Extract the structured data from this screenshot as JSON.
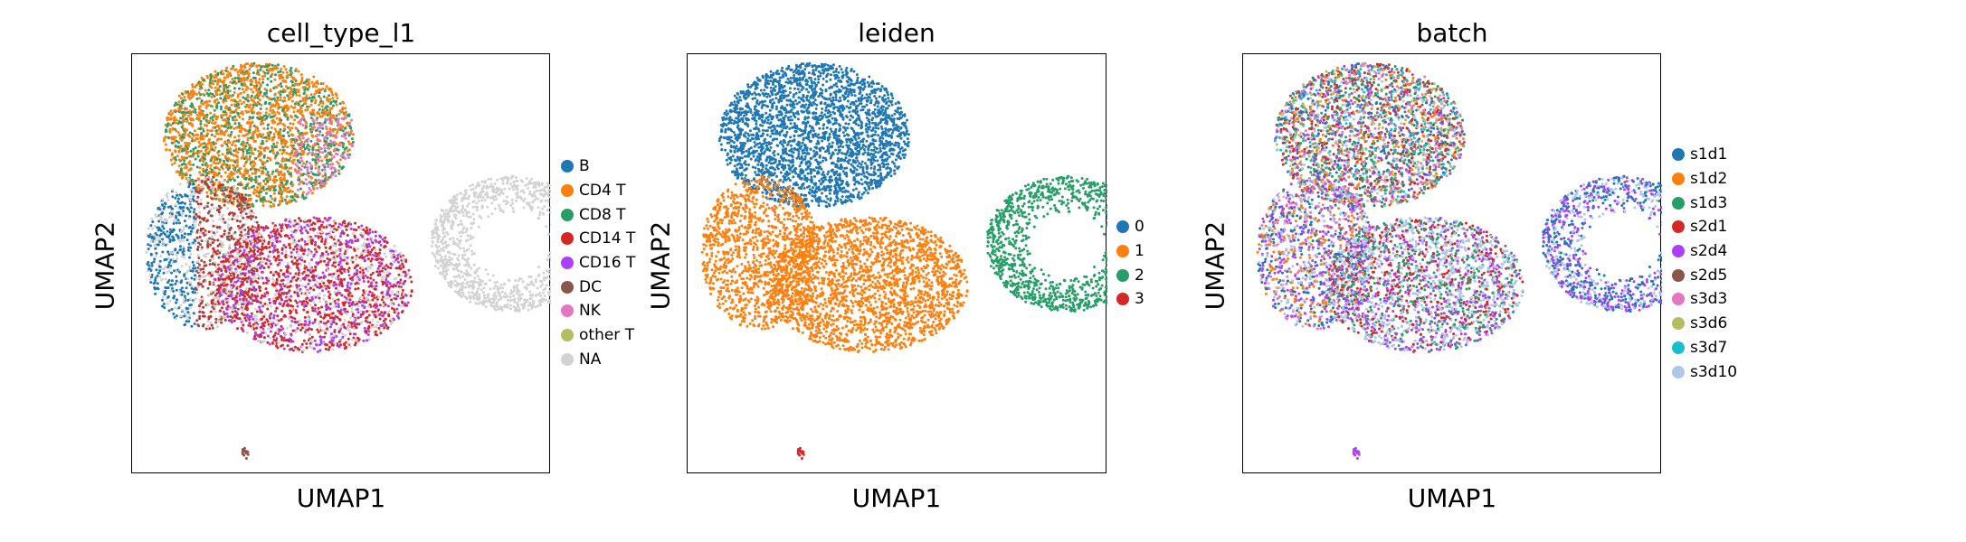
{
  "chart_data": [
    {
      "type": "scatter",
      "title": "cell_type_l1",
      "xlabel": "UMAP1",
      "ylabel": "UMAP2",
      "legend": [
        {
          "label": "B",
          "color": "#1f77b4"
        },
        {
          "label": "CD4 T",
          "color": "#ff7f0e"
        },
        {
          "label": "CD8 T",
          "color": "#279e68"
        },
        {
          "label": "CD14 T",
          "color": "#d62728"
        },
        {
          "label": "CD16 T",
          "color": "#aa40fc"
        },
        {
          "label": "DC",
          "color": "#8c564b"
        },
        {
          "label": "NK",
          "color": "#e377c2"
        },
        {
          "label": "other T",
          "color": "#b5bd61"
        },
        {
          "label": "NA",
          "color": "#d3d3d3"
        }
      ],
      "legend_placement": "right"
    },
    {
      "type": "scatter",
      "title": "leiden",
      "xlabel": "UMAP1",
      "ylabel": "UMAP2",
      "legend": [
        {
          "label": "0",
          "color": "#1f77b4"
        },
        {
          "label": "1",
          "color": "#ff7f0e"
        },
        {
          "label": "2",
          "color": "#279e68"
        },
        {
          "label": "3",
          "color": "#d62728"
        }
      ],
      "legend_placement": "right"
    },
    {
      "type": "scatter",
      "title": "batch",
      "xlabel": "UMAP1",
      "ylabel": "UMAP2",
      "legend": [
        {
          "label": "s1d1",
          "color": "#1f77b4"
        },
        {
          "label": "s1d2",
          "color": "#ff7f0e"
        },
        {
          "label": "s1d3",
          "color": "#279e68"
        },
        {
          "label": "s2d1",
          "color": "#d62728"
        },
        {
          "label": "s2d4",
          "color": "#aa40fc"
        },
        {
          "label": "s2d5",
          "color": "#8c564b"
        },
        {
          "label": "s3d3",
          "color": "#e377c2"
        },
        {
          "label": "s3d6",
          "color": "#b5bd61"
        },
        {
          "label": "s3d7",
          "color": "#17becf"
        },
        {
          "label": "s3d10",
          "color": "#aec7e8"
        }
      ],
      "legend_placement": "right"
    }
  ]
}
